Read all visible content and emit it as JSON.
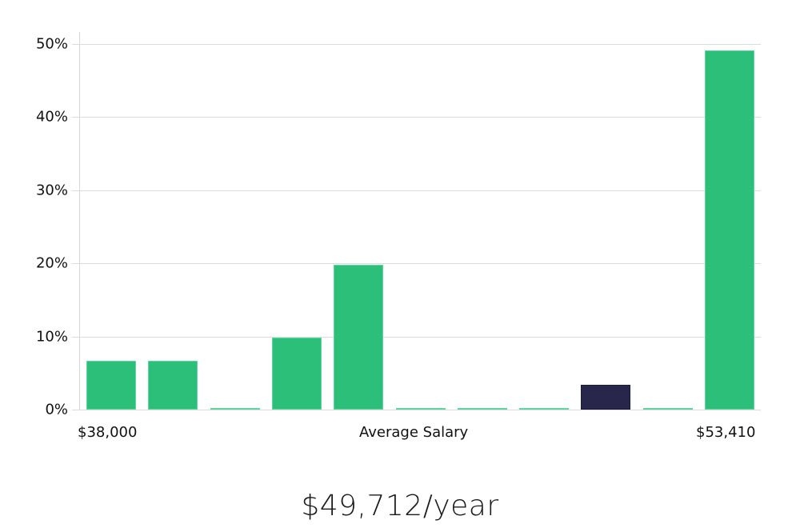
{
  "chart_data": {
    "type": "bar",
    "title": "",
    "xlabel": "Average Salary",
    "ylabel": "",
    "x_range_labels": {
      "min": "$38,000",
      "max": "$53,410"
    },
    "categories": [
      "bin1",
      "bin2",
      "bin3",
      "bin4",
      "bin5",
      "bin6",
      "bin7",
      "bin8",
      "bin9",
      "bin10",
      "bin11"
    ],
    "values": [
      6.7,
      6.7,
      0,
      9.8,
      19.8,
      0,
      0,
      0,
      3.4,
      0,
      49.1
    ],
    "highlight_index": 8,
    "ylim": [
      0,
      50
    ],
    "yticks": [
      "0%",
      "10%",
      "20%",
      "30%",
      "40%",
      "50%"
    ],
    "ytick_values": [
      0,
      10,
      20,
      30,
      40,
      50
    ],
    "grid": true,
    "legend": null,
    "colors": {
      "bar": "#2bbf7a",
      "highlight": "#28264a",
      "grid": "#dcdcdc"
    }
  },
  "axis": {
    "min_label": "$38,000",
    "center_label": "Average Salary",
    "max_label": "$53,410"
  },
  "summary": {
    "salary": "$49,712/year"
  }
}
